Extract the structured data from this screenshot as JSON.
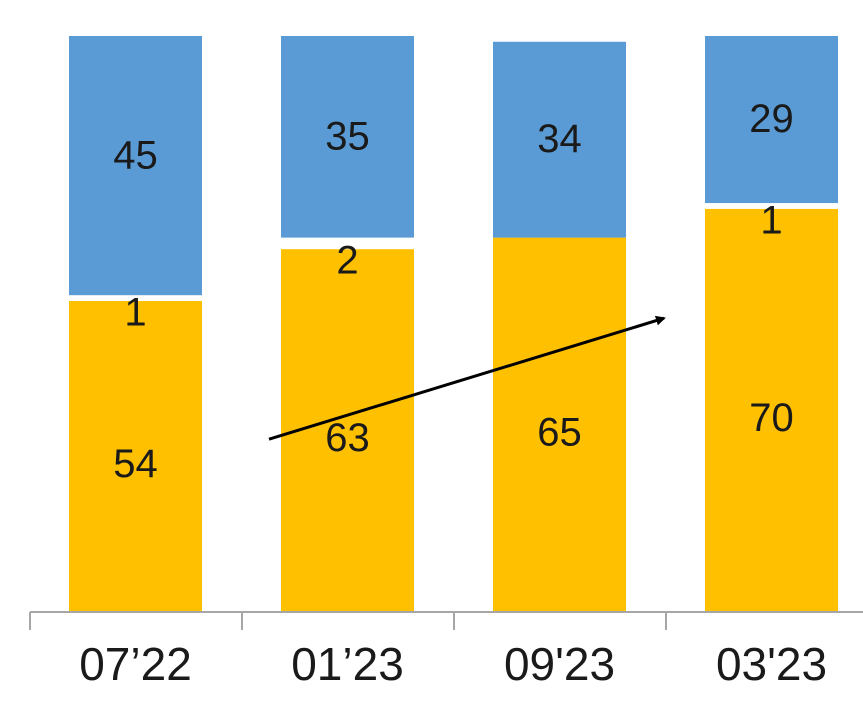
{
  "chart_data": {
    "type": "bar",
    "stacked": true,
    "categories": [
      "07’22",
      "01’23",
      "09'23",
      "03'23"
    ],
    "series": [
      {
        "values": [
          54,
          63,
          65,
          70
        ],
        "labels": [
          "54",
          "63",
          "65",
          "70"
        ],
        "color": "#FFC000"
      },
      {
        "values": [
          1,
          2,
          0,
          1
        ],
        "labels": [
          "1",
          "2",
          "",
          "1"
        ],
        "color": "#FFFFFF"
      },
      {
        "values": [
          45,
          35,
          34,
          29
        ],
        "labels": [
          "45",
          "35",
          "34",
          "29"
        ],
        "color": "#5B9BD5"
      }
    ],
    "ylim": [
      0,
      100
    ],
    "grid": false,
    "legend": "none",
    "annotations": [
      {
        "type": "arrow",
        "from": {
          "category": "01’23",
          "y": 30
        },
        "to": {
          "category": "03'23",
          "y": 51
        },
        "color": "#000000"
      }
    ]
  }
}
